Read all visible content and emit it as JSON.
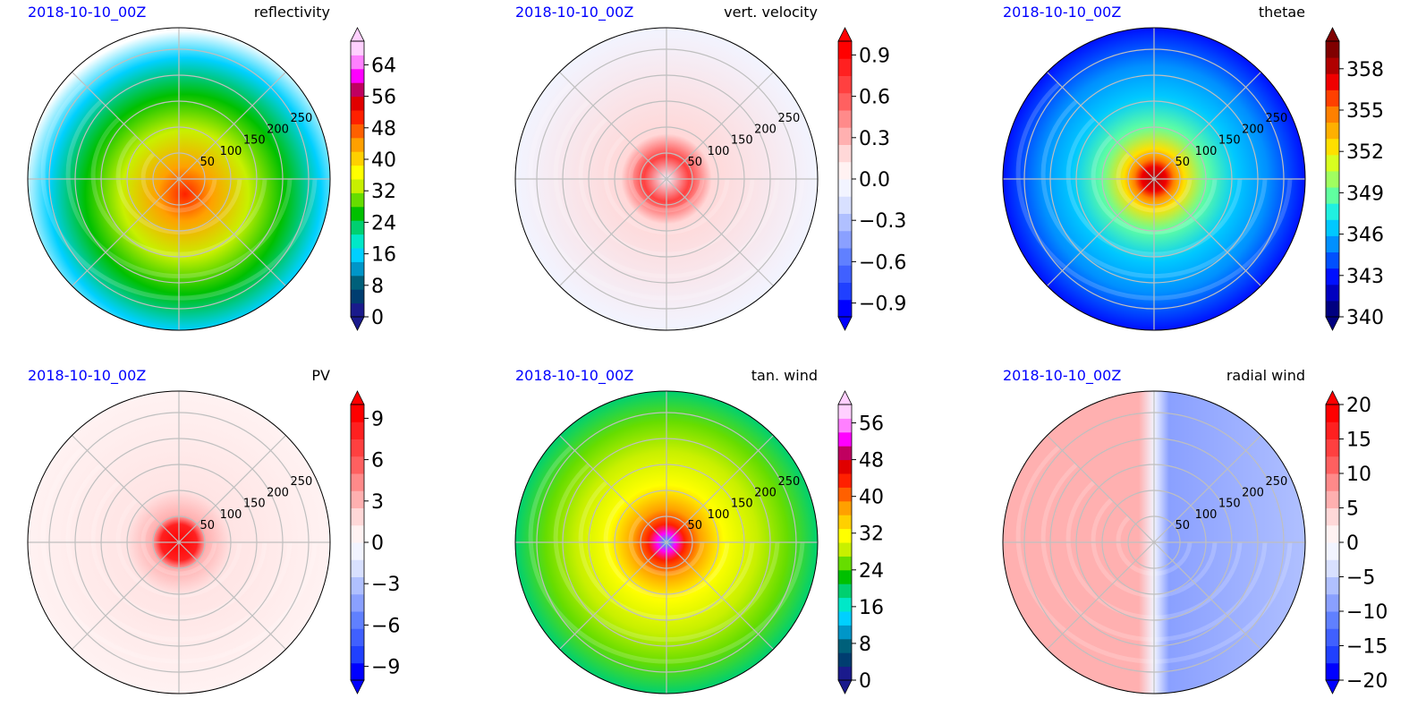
{
  "figure": {
    "panels": [
      {
        "date": "2018-10-10_00Z",
        "variable": "reflectivity",
        "colorbar_ticks": [
          "0",
          "8",
          "16",
          "24",
          "32",
          "40",
          "48",
          "56",
          "64"
        ],
        "colormap": [
          "#1a1a8c",
          "#003d70",
          "#00607a",
          "#0096c8",
          "#00d0ff",
          "#00e8c8",
          "#00d070",
          "#00c000",
          "#66dd00",
          "#c8f000",
          "#ffff00",
          "#ffd000",
          "#ffa000",
          "#ff6000",
          "#ff2000",
          "#e00000",
          "#c00060",
          "#ff00ff",
          "#ff80ff",
          "#ffd0ff"
        ],
        "radial_labels": [
          "50",
          "100",
          "150",
          "200",
          "250"
        ],
        "extend": "both"
      },
      {
        "date": "2018-10-10_00Z",
        "variable": "vert. velocity",
        "colorbar_ticks": [
          "−0.9",
          "−0.6",
          "−0.3",
          "0.0",
          "0.3",
          "0.6",
          "0.9"
        ],
        "colormap": [
          "#0000ff",
          "#2040ff",
          "#4060ff",
          "#6080ff",
          "#8aa0ff",
          "#b0c0ff",
          "#d8e0ff",
          "#f2f4ff",
          "#fff2f2",
          "#ffd8d8",
          "#ffb0b0",
          "#ff8a8a",
          "#ff6060",
          "#ff4040",
          "#ff2020",
          "#ff0000"
        ],
        "radial_labels": [
          "50",
          "100",
          "150",
          "200",
          "250"
        ],
        "extend": "both"
      },
      {
        "date": "2018-10-10_00Z",
        "variable": "thetae",
        "colorbar_ticks": [
          "340",
          "343",
          "346",
          "349",
          "352",
          "355",
          "358"
        ],
        "colormap": [
          "#000080",
          "#0000c0",
          "#0010ff",
          "#0050ff",
          "#0090ff",
          "#00c8ff",
          "#20f0e0",
          "#60ffa0",
          "#a0ff60",
          "#d8ff20",
          "#ffe000",
          "#ffb000",
          "#ff8000",
          "#ff4000",
          "#f00000",
          "#b00000",
          "#800000"
        ],
        "radial_labels": [
          "50",
          "100",
          "150",
          "200",
          "250"
        ],
        "extend": "both"
      },
      {
        "date": "2018-10-10_00Z",
        "variable": "PV",
        "colorbar_ticks": [
          "−9",
          "−6",
          "−3",
          "0",
          "3",
          "6",
          "9"
        ],
        "colormap": [
          "#0000ff",
          "#2040ff",
          "#4060ff",
          "#6080ff",
          "#8aa0ff",
          "#b0c0ff",
          "#d8e0ff",
          "#f2f4ff",
          "#fff2f2",
          "#ffd8d8",
          "#ffb0b0",
          "#ff8a8a",
          "#ff6060",
          "#ff4040",
          "#ff2020",
          "#ff0000"
        ],
        "radial_labels": [
          "50",
          "100",
          "150",
          "200",
          "250"
        ],
        "extend": "both"
      },
      {
        "date": "2018-10-10_00Z",
        "variable": "tan. wind",
        "colorbar_ticks": [
          "0",
          "8",
          "16",
          "24",
          "32",
          "40",
          "48",
          "56"
        ],
        "colormap": [
          "#1a1a8c",
          "#003d70",
          "#00607a",
          "#0096c8",
          "#00d0ff",
          "#00e8c8",
          "#00d070",
          "#00c000",
          "#66dd00",
          "#c8f000",
          "#ffff00",
          "#ffd000",
          "#ffa000",
          "#ff6000",
          "#ff2000",
          "#e00000",
          "#c00060",
          "#ff00ff",
          "#ff80ff",
          "#ffd0ff"
        ],
        "radial_labels": [
          "50",
          "100",
          "150",
          "200",
          "250"
        ],
        "extend": "both"
      },
      {
        "date": "2018-10-10_00Z",
        "variable": "radial wind",
        "colorbar_ticks": [
          "−20",
          "−15",
          "−10",
          "−5",
          "0",
          "5",
          "10",
          "15",
          "20"
        ],
        "colormap": [
          "#0000ff",
          "#2040ff",
          "#4060ff",
          "#6080ff",
          "#8aa0ff",
          "#b0c0ff",
          "#d8e0ff",
          "#f2f4ff",
          "#fff2f2",
          "#ffd8d8",
          "#ffb0b0",
          "#ff8a8a",
          "#ff6060",
          "#ff4040",
          "#ff2020",
          "#ff0000"
        ],
        "radial_labels": [
          "50",
          "100",
          "150",
          "200",
          "250"
        ],
        "extend": "both"
      }
    ]
  },
  "chart_data": [
    {
      "type": "heatmap",
      "subtitle": "2018-10-10_00Z",
      "title": "reflectivity",
      "colorbar_range": [
        0,
        70
      ],
      "colorbar_ticks": [
        0,
        8,
        16,
        24,
        32,
        40,
        48,
        56,
        64
      ],
      "radial_ticks": [
        50,
        100,
        150,
        200,
        250
      ],
      "projection": "polar"
    },
    {
      "type": "heatmap",
      "subtitle": "2018-10-10_00Z",
      "title": "vert. velocity",
      "colorbar_range": [
        -1.0,
        1.0
      ],
      "colorbar_ticks": [
        -0.9,
        -0.6,
        -0.3,
        0.0,
        0.3,
        0.6,
        0.9
      ],
      "radial_ticks": [
        50,
        100,
        150,
        200,
        250
      ],
      "projection": "polar"
    },
    {
      "type": "heatmap",
      "subtitle": "2018-10-10_00Z",
      "title": "thetae",
      "colorbar_range": [
        340,
        360
      ],
      "colorbar_ticks": [
        340,
        343,
        346,
        349,
        352,
        355,
        358
      ],
      "radial_ticks": [
        50,
        100,
        150,
        200,
        250
      ],
      "projection": "polar"
    },
    {
      "type": "heatmap",
      "subtitle": "2018-10-10_00Z",
      "title": "PV",
      "colorbar_range": [
        -10,
        10
      ],
      "colorbar_ticks": [
        -9,
        -6,
        -3,
        0,
        3,
        6,
        9
      ],
      "radial_ticks": [
        50,
        100,
        150,
        200,
        250
      ],
      "projection": "polar"
    },
    {
      "type": "heatmap",
      "subtitle": "2018-10-10_00Z",
      "title": "tan. wind",
      "colorbar_range": [
        0,
        60
      ],
      "colorbar_ticks": [
        0,
        8,
        16,
        24,
        32,
        40,
        48,
        56
      ],
      "radial_ticks": [
        50,
        100,
        150,
        200,
        250
      ],
      "projection": "polar"
    },
    {
      "type": "heatmap",
      "subtitle": "2018-10-10_00Z",
      "title": "radial wind",
      "colorbar_range": [
        -20,
        20
      ],
      "colorbar_ticks": [
        -20,
        -15,
        -10,
        -5,
        0,
        5,
        10,
        15,
        20
      ],
      "radial_ticks": [
        50,
        100,
        150,
        200,
        250
      ],
      "projection": "polar"
    }
  ]
}
